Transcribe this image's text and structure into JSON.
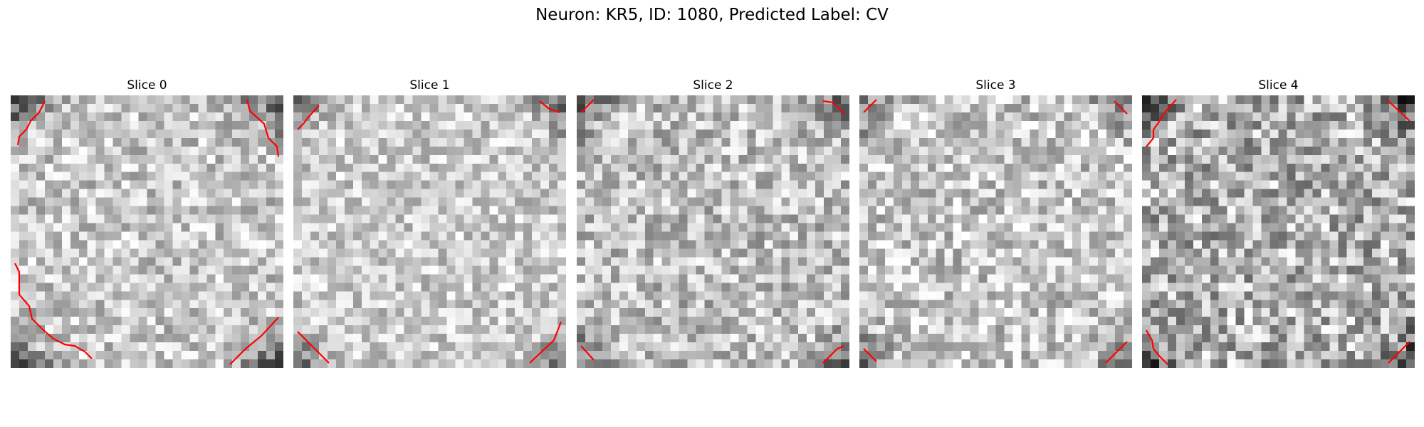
{
  "figure": {
    "title": "Neuron: KR5, ID: 1080, Predicted Label: CV",
    "contour_color": "#ff0000",
    "colormap": "gray",
    "slices": [
      {
        "label": "Slice 0",
        "seed": 11,
        "edge_dark": 0.55,
        "noise": 0.22,
        "base": 0.78
      },
      {
        "label": "Slice 1",
        "seed": 23,
        "edge_dark": 0.45,
        "noise": 0.2,
        "base": 0.8
      },
      {
        "label": "Slice 2",
        "seed": 37,
        "edge_dark": 0.4,
        "noise": 0.24,
        "base": 0.75
      },
      {
        "label": "Slice 3",
        "seed": 41,
        "edge_dark": 0.35,
        "noise": 0.24,
        "base": 0.78
      },
      {
        "label": "Slice 4",
        "seed": 59,
        "edge_dark": 0.5,
        "noise": 0.3,
        "base": 0.7
      }
    ]
  }
}
